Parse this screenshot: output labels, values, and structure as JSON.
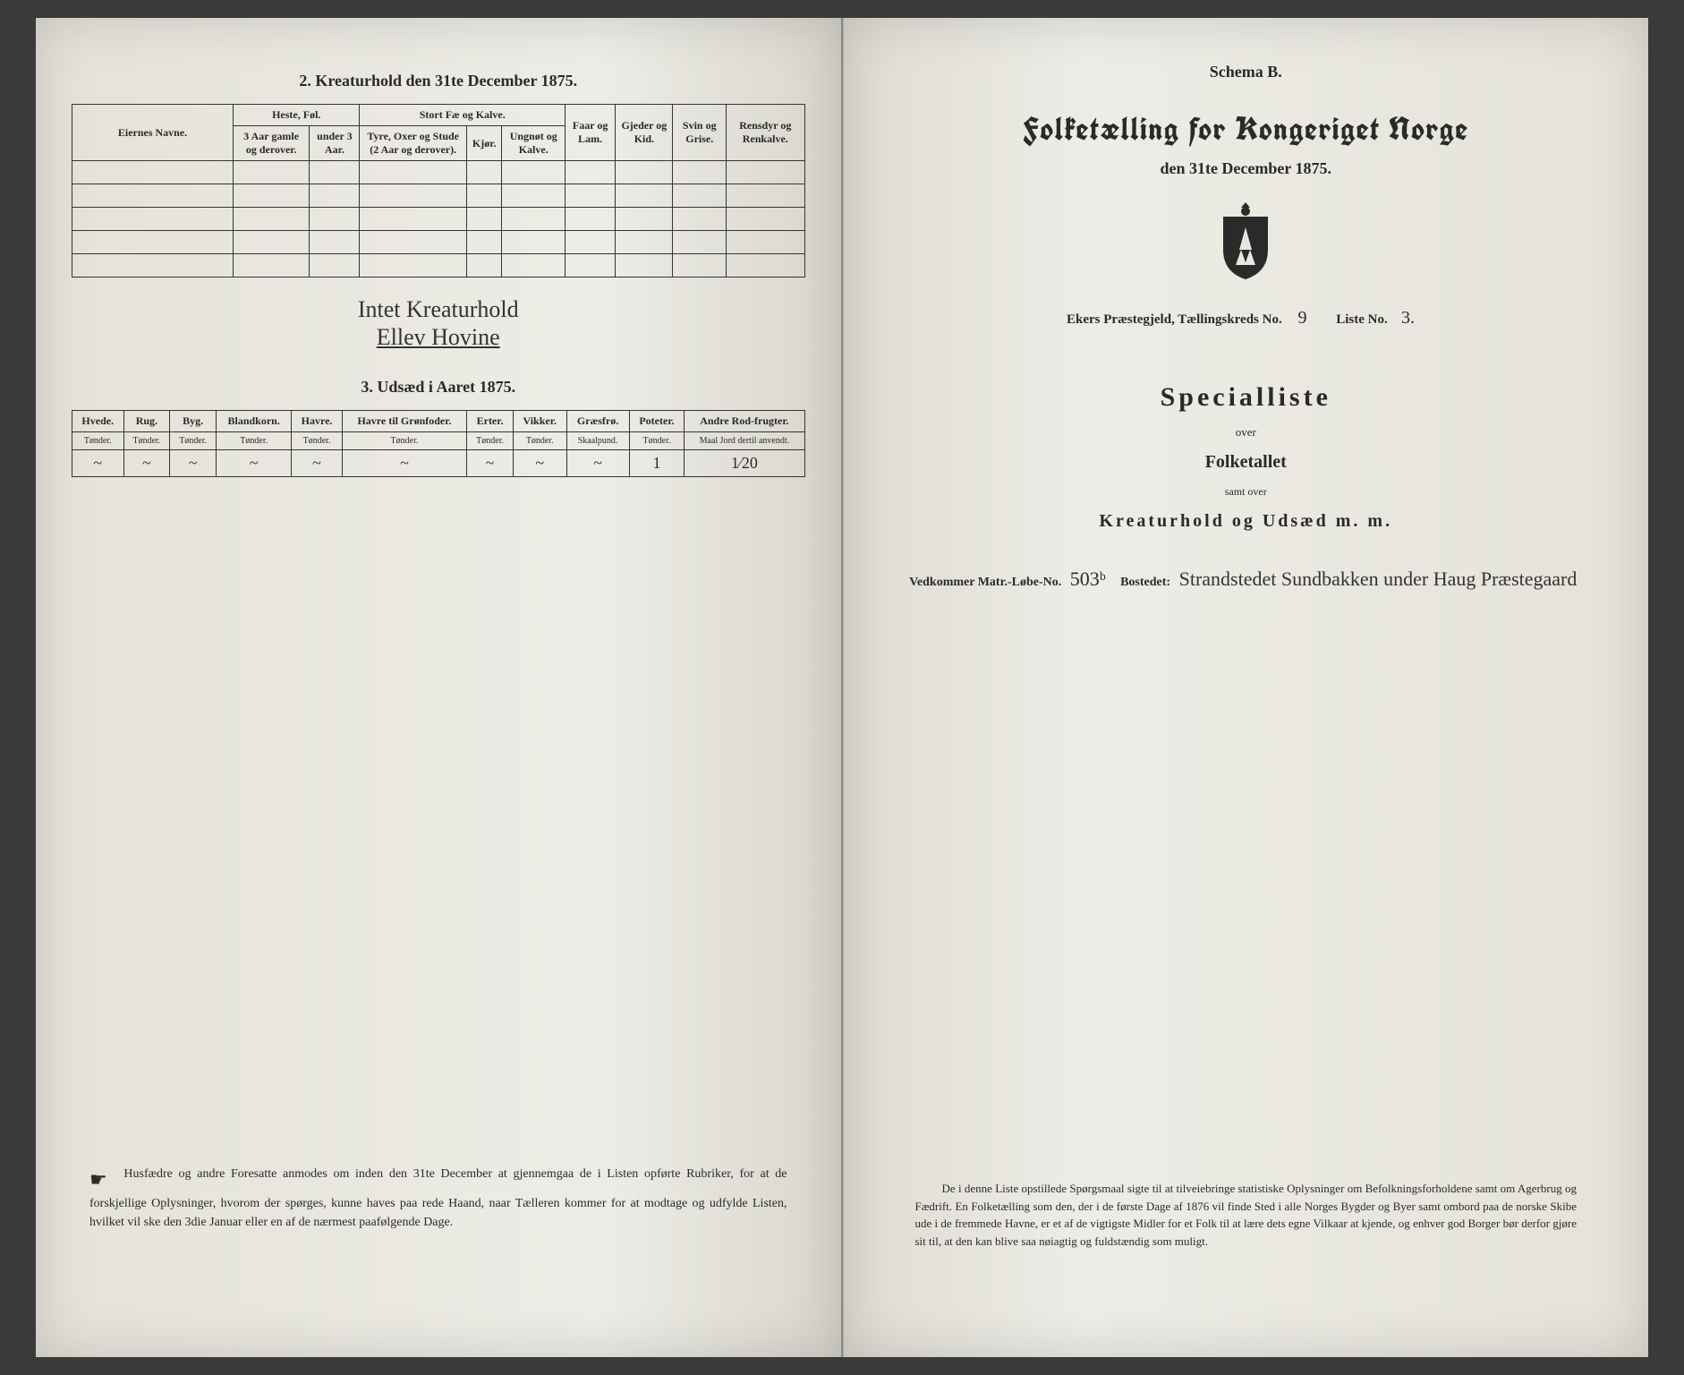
{
  "left": {
    "table2": {
      "title": "2.  Kreaturhold den 31te December 1875.",
      "col_eier": "Eiernes Navne.",
      "group_heste": "Heste, Føl.",
      "group_stortfe": "Stort Fæ og Kalve.",
      "col_faar": "Faar og Lam.",
      "col_gjeder": "Gjeder og Kid.",
      "col_svin": "Svin og Grise.",
      "col_rensdyr": "Rensdyr og Renkalve.",
      "sub_heste_a": "3 Aar gamle og derover.",
      "sub_heste_b": "under 3 Aar.",
      "sub_fe_a": "Tyre, Oxer og Stude (2 Aar og derover).",
      "sub_fe_b": "Kjør.",
      "sub_fe_c": "Ungnøt og Kalve."
    },
    "handwriting_line1": "Intet Kreaturhold",
    "handwriting_line2": "Ellev Hovine",
    "table3": {
      "title": "3.  Udsæd i Aaret 1875.",
      "cols": [
        {
          "h": "Hvede.",
          "u": "Tønder."
        },
        {
          "h": "Rug.",
          "u": "Tønder."
        },
        {
          "h": "Byg.",
          "u": "Tønder."
        },
        {
          "h": "Blandkorn.",
          "u": "Tønder."
        },
        {
          "h": "Havre.",
          "u": "Tønder."
        },
        {
          "h": "Havre til Grønfoder.",
          "u": "Tønder."
        },
        {
          "h": "Erter.",
          "u": "Tønder."
        },
        {
          "h": "Vikker.",
          "u": "Tønder."
        },
        {
          "h": "Græsfrø.",
          "u": "Skaalpund."
        },
        {
          "h": "Poteter.",
          "u": "Tønder."
        },
        {
          "h": "Andre Rod-frugter.",
          "u": "Maal Jord dertil anvendt."
        }
      ],
      "row": [
        "~",
        "~",
        "~",
        "~",
        "~",
        "~",
        "~",
        "~",
        "~",
        "1",
        "1⁄20"
      ]
    },
    "footer": "Husfædre og andre Foresatte anmodes om inden den 31te December at gjennemgaa de i Listen opførte Rubriker, for at de forskjellige Oplysninger, hvorom der spørges, kunne haves paa rede Haand, naar Tælleren kommer for at modtage og udfylde Listen, hvilket vil ske den 3die Januar eller en af de nærmest paafølgende Dage."
  },
  "right": {
    "schema": "Schema B.",
    "main_title": "Folketælling for Kongeriget Norge",
    "sub_title": "den 31te December 1875.",
    "parish_prefix": "Ekers Præstegjeld, Tællingskreds No.",
    "parish_kreds": "9",
    "parish_liste_label": "Liste No.",
    "parish_liste": "3.",
    "special": "Specialliste",
    "over": "over",
    "folketallet": "Folketallet",
    "samt_over": "samt over",
    "kreatur": "Kreaturhold og Udsæd m. m.",
    "matr_prefix": "Vedkommer Matr.-Løbe-No.",
    "matr_no": "503ᵇ",
    "bosted_label": "Bostedet:",
    "bosted": "Strandstedet Sundbakken under Haug Præstegaard",
    "footer": "De i denne Liste opstillede Spørgsmaal sigte til at tilveiebringe statistiske Oplysninger om Befolkningsforholdene samt om Agerbrug og Fædrift.  En Folketælling som den, der i de første Dage af 1876 vil finde Sted i alle Norges Bygder og Byer samt ombord paa de norske Skibe ude i de fremmede Havne, er et af de vigtigste Midler for et Folk til at lære dets egne Vilkaar at kjende, og enhver god Borger bør derfor gjøre sit til, at den kan blive saa nøiagtig og fuldstændig som muligt."
  }
}
